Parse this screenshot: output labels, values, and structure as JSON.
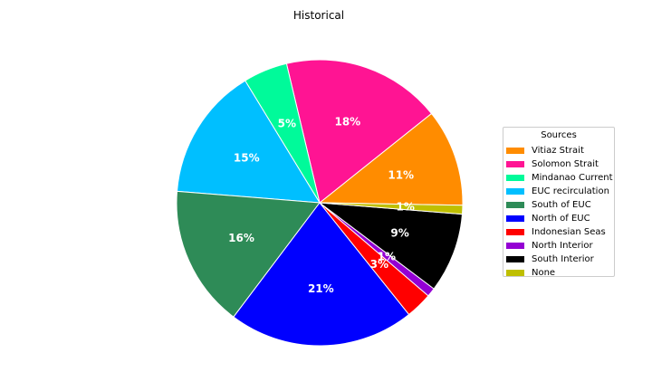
{
  "chart_data": {
    "type": "pie",
    "title": "Historical",
    "legend_title": "Sources",
    "legend_position": "right",
    "slices": [
      {
        "label": "Vitiaz Strait",
        "value": 11,
        "color": "#ff8c00",
        "text": "11%"
      },
      {
        "label": "Solomon Strait",
        "value": 18,
        "color": "#ff1493",
        "text": "18%"
      },
      {
        "label": "Mindanao Current",
        "value": 5,
        "color": "#00fa9a",
        "text": "5%"
      },
      {
        "label": "EUC recirculation",
        "value": 15,
        "color": "#00bfff",
        "text": "15%"
      },
      {
        "label": "South of EUC",
        "value": 16,
        "color": "#2e8b57",
        "text": "16%"
      },
      {
        "label": "North of EUC",
        "value": 21,
        "color": "#0000ff",
        "text": "21%"
      },
      {
        "label": "Indonesian Seas",
        "value": 3,
        "color": "#ff0000",
        "text": "3%"
      },
      {
        "label": "North Interior",
        "value": 1,
        "color": "#9400d3",
        "text": "1%"
      },
      {
        "label": "South Interior",
        "value": 9,
        "color": "#000000",
        "text": "9%"
      },
      {
        "label": "None",
        "value": 1,
        "color": "#bfbf00",
        "text": "1%"
      }
    ]
  }
}
